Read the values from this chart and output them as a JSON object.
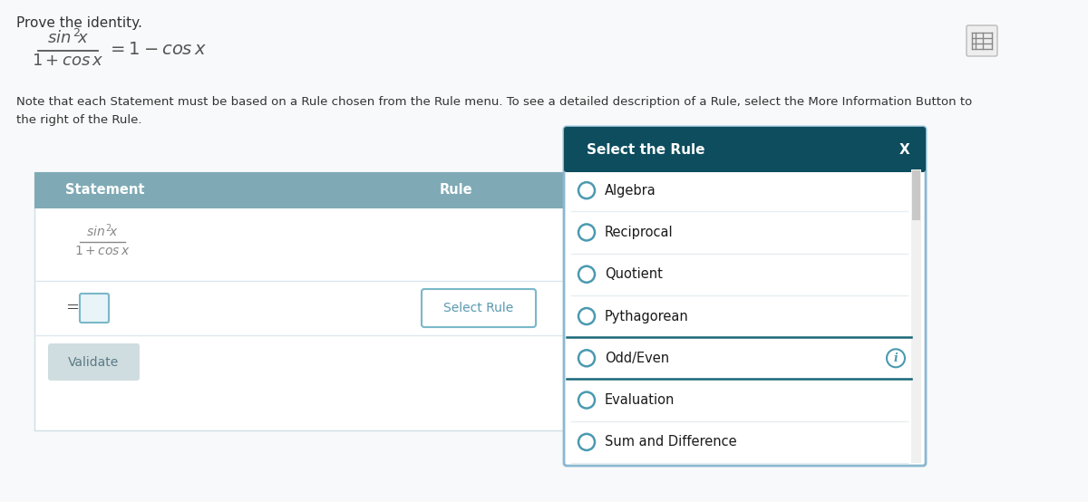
{
  "background_color": "#f8f9fa",
  "title_text": "Prove the identity.",
  "note_text": "Note that each Statement must be based on a Rule chosen from the Rule menu. To see a detailed description of a Rule, select the More Information Button to\nthe right of the Rule.",
  "table_header_bg": "#7faab5",
  "table_header_text_color": "#ffffff",
  "table_col1": "Statement",
  "table_col2": "Rule",
  "table_row2_eq": "=",
  "select_rule_btn_text": "Select Rule",
  "validate_btn_text": "Validate",
  "validate_btn_bg": "#d0dde0",
  "validate_btn_text_color": "#5a7a85",
  "select_rule_btn_bg": "#ffffff",
  "select_rule_btn_border": "#7ab8c8",
  "modal_header_bg": "#0d4d5e",
  "modal_header_text": "Select the Rule",
  "modal_close": "X",
  "modal_bg": "#ffffff",
  "modal_border": "#8ab8d0",
  "modal_items": [
    "Algebra",
    "Reciprocal",
    "Quotient",
    "Pythagorean",
    "Odd/Even",
    "Evaluation",
    "Sum and Difference"
  ],
  "modal_highlighted_item": "Odd/Even",
  "modal_highlighted_bg": "#ffffff",
  "modal_highlighted_border": "#1a6878",
  "radio_color": "#4a9ab0",
  "info_icon_item": "Odd/Even",
  "scrollbar_color": "#c8c8c8",
  "table_border_color": "#d0dfe5",
  "input_box_border": "#7ab8c8",
  "input_box_bg": "#e8f4f8",
  "separator_color": "#dde8ec",
  "text_color": "#333333",
  "formula_color": "#555555"
}
